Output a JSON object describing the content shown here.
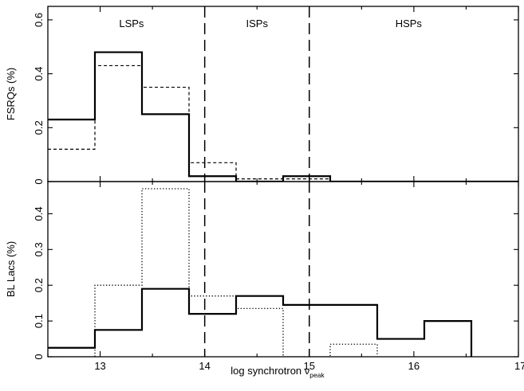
{
  "chart_data": [
    {
      "type": "histogram",
      "panel": "top",
      "ylabel": "FSRQs (%)",
      "ylim": [
        0,
        0.65
      ],
      "xlim": [
        12.5,
        17
      ],
      "yticks": [
        0,
        0.2,
        0.4,
        0.6
      ],
      "ytick_labels": [
        "0",
        "0.2",
        "0.4",
        "0.6"
      ],
      "region_labels": [
        "LSPs",
        "ISPs",
        "HSPs"
      ],
      "vlines": [
        14,
        15
      ],
      "series": [
        {
          "style": "solid",
          "edges": [
            12.5,
            12.95,
            13.4,
            13.85,
            14.3,
            14.75,
            15.2,
            17.0
          ],
          "values": [
            0.23,
            0.48,
            0.25,
            0.02,
            0.0,
            0.02,
            0.0
          ]
        },
        {
          "style": "dashed",
          "edges": [
            12.5,
            12.95,
            13.4,
            13.85,
            14.3,
            14.75,
            15.2,
            17.0
          ],
          "values": [
            0.12,
            0.43,
            0.35,
            0.07,
            0.01,
            0.01,
            0.0
          ]
        }
      ]
    },
    {
      "type": "histogram",
      "panel": "bottom",
      "ylabel": "BL Lacs (%)",
      "xlabel": "log synchrotron ν",
      "xlabel_sub": "peak",
      "ylim": [
        0,
        0.49
      ],
      "xlim": [
        12.5,
        17
      ],
      "xticks": [
        13,
        14,
        15,
        16,
        17
      ],
      "xtick_labels": [
        "13",
        "14",
        "15",
        "16",
        "17"
      ],
      "yticks": [
        0,
        0.1,
        0.2,
        0.3,
        0.4
      ],
      "ytick_labels": [
        "0",
        "0.1",
        "0.2",
        "0.3",
        "0.4"
      ],
      "vlines": [
        14,
        15
      ],
      "series": [
        {
          "style": "solid",
          "edges": [
            12.5,
            12.95,
            13.4,
            13.85,
            14.3,
            14.75,
            15.65,
            16.1,
            16.55
          ],
          "values": [
            0.025,
            0.075,
            0.19,
            0.12,
            0.17,
            0.145,
            0.05,
            0.1
          ]
        },
        {
          "style": "dotted",
          "edges": [
            12.5,
            12.95,
            13.4,
            13.85,
            14.3,
            14.75,
            15.2,
            15.65
          ],
          "values": [
            0.0,
            0.2,
            0.47,
            0.17,
            0.135,
            0.0,
            0.035
          ]
        }
      ]
    }
  ]
}
